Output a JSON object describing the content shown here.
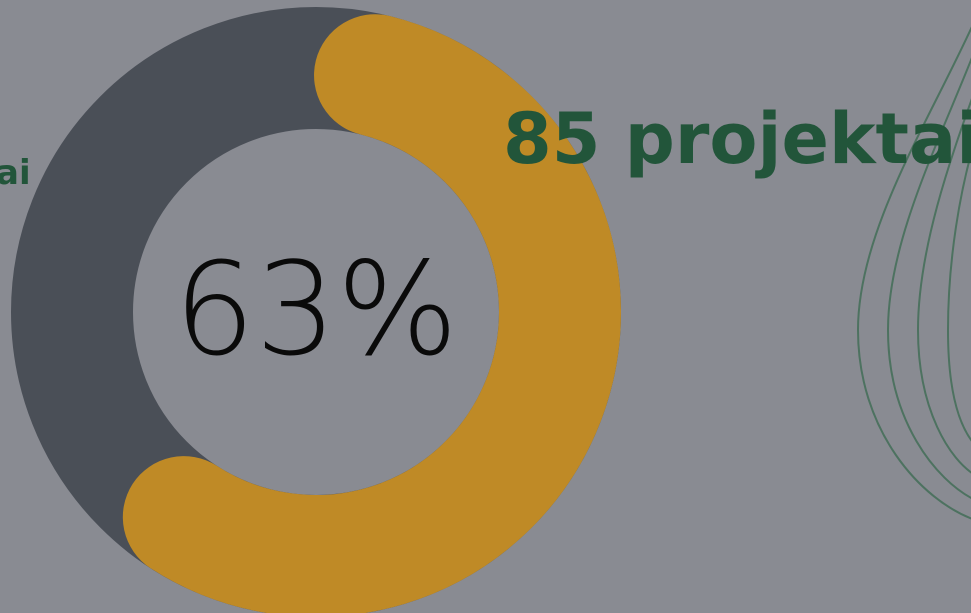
{
  "progress": {
    "value": 63,
    "label": "63%"
  },
  "headline": "85 projektai",
  "side_label": "ai"
}
